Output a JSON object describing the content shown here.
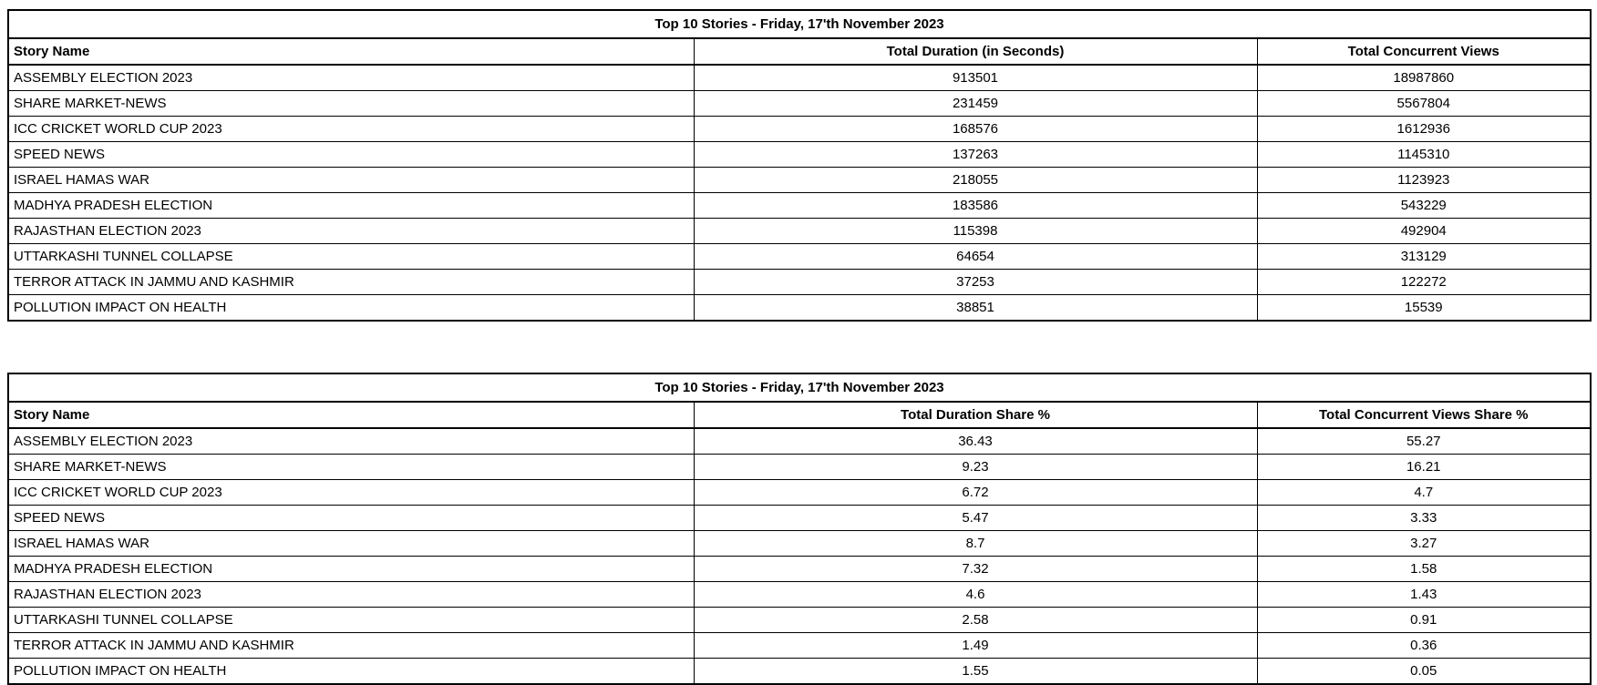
{
  "tables": [
    {
      "title": "Top 10 Stories - Friday, 17'th November 2023",
      "columns": [
        "Story Name",
        "Total Duration (in Seconds)",
        "Total Concurrent Views"
      ],
      "rows": [
        [
          "ASSEMBLY ELECTION 2023",
          "913501",
          "18987860"
        ],
        [
          "SHARE MARKET-NEWS",
          "231459",
          "5567804"
        ],
        [
          "ICC CRICKET WORLD CUP 2023",
          "168576",
          "1612936"
        ],
        [
          "SPEED NEWS",
          "137263",
          "1145310"
        ],
        [
          "ISRAEL HAMAS WAR",
          "218055",
          "1123923"
        ],
        [
          "MADHYA PRADESH ELECTION",
          "183586",
          "543229"
        ],
        [
          "RAJASTHAN ELECTION 2023",
          "115398",
          "492904"
        ],
        [
          "UTTARKASHI TUNNEL COLLAPSE",
          "64654",
          "313129"
        ],
        [
          "TERROR ATTACK IN JAMMU AND KASHMIR",
          "37253",
          "122272"
        ],
        [
          "POLLUTION IMPACT ON HEALTH",
          "38851",
          "15539"
        ]
      ]
    },
    {
      "title": "Top 10 Stories - Friday, 17'th November 2023",
      "columns": [
        "Story Name",
        "Total Duration Share %",
        "Total Concurrent Views Share %"
      ],
      "rows": [
        [
          "ASSEMBLY ELECTION 2023",
          "36.43",
          "55.27"
        ],
        [
          "SHARE MARKET-NEWS",
          "9.23",
          "16.21"
        ],
        [
          "ICC CRICKET WORLD CUP 2023",
          "6.72",
          "4.7"
        ],
        [
          "SPEED NEWS",
          "5.47",
          "3.33"
        ],
        [
          "ISRAEL HAMAS WAR",
          "8.7",
          "3.27"
        ],
        [
          "MADHYA PRADESH ELECTION",
          "7.32",
          "1.58"
        ],
        [
          "RAJASTHAN ELECTION 2023",
          "4.6",
          "1.43"
        ],
        [
          "UTTARKASHI TUNNEL COLLAPSE",
          "2.58",
          "0.91"
        ],
        [
          "TERROR ATTACK IN JAMMU AND KASHMIR",
          "1.49",
          "0.36"
        ],
        [
          "POLLUTION IMPACT ON HEALTH",
          "1.55",
          "0.05"
        ]
      ]
    }
  ]
}
